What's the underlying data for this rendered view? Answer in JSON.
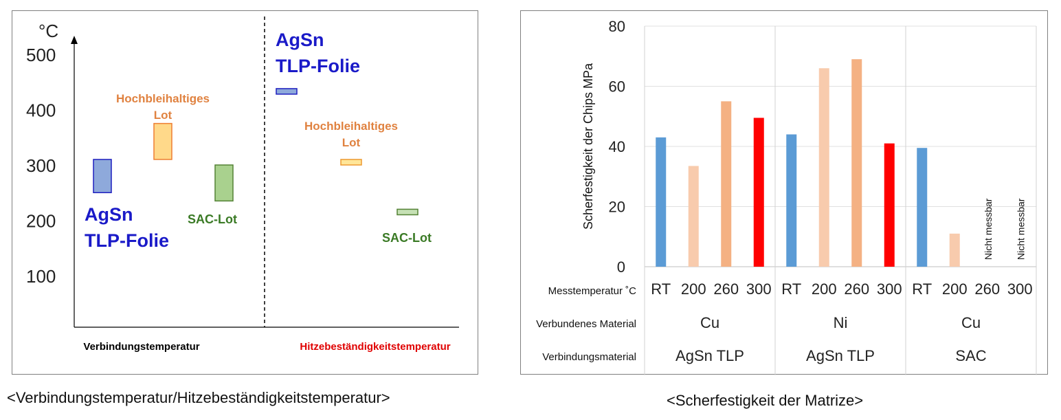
{
  "captions": {
    "left": "<Verbindungstemperatur/Hitzebeständigkeitstemperatur>",
    "right": "<Scherfestigkeit der Matrize>"
  },
  "chart_data": [
    {
      "type": "range",
      "unit": "°C",
      "yticks": [
        100,
        200,
        300,
        400,
        500
      ],
      "ylim": [
        0,
        530
      ],
      "sections": [
        {
          "label": "Verbindungstemperatur",
          "label_color": "#000000",
          "items": [
            {
              "name": "AgSn TLP-Folie",
              "label_lines": [
                "AgSn",
                "TLP-Folie"
              ],
              "range": [
                250,
                310
              ],
              "fill": "#8ea9db",
              "stroke": "#1f1fbf",
              "label_color": "#1a1ac8"
            },
            {
              "name": "Hochbleihaltiges Lot",
              "label_lines": [
                "Hochbleihaltiges",
                "Lot"
              ],
              "range": [
                310,
                375
              ],
              "fill": "#ffd98a",
              "stroke": "#ed7d31",
              "label_color": "#e08240"
            },
            {
              "name": "SAC-Lot",
              "label_lines": [
                "SAC-Lot"
              ],
              "range": [
                235,
                300
              ],
              "fill": "#a9d18e",
              "stroke": "#548235",
              "label_color": "#3a7a25"
            }
          ]
        },
        {
          "label": "Hitzebeständigkeitstemperatur",
          "label_color": "#e00000",
          "items": [
            {
              "name": "AgSn TLP-Folie",
              "label_lines": [
                "AgSn",
                "TLP-Folie"
              ],
              "range": [
                428,
                438
              ],
              "fill": "#8ea9db",
              "stroke": "#1f1fbf",
              "label_color": "#1a1ac8"
            },
            {
              "name": "Hochbleihaltiges Lot",
              "label_lines": [
                "Hochbleihaltiges",
                "Lot"
              ],
              "range": [
                300,
                310
              ],
              "fill": "#ffe699",
              "stroke": "#ed9a31",
              "label_color": "#e08240"
            },
            {
              "name": "SAC-Lot",
              "label_lines": [
                "SAC-Lot"
              ],
              "range": [
                210,
                220
              ],
              "fill": "#c5e0b4",
              "stroke": "#548235",
              "label_color": "#3a7a25"
            }
          ]
        }
      ]
    },
    {
      "type": "bar",
      "ylabel": "Scherfestigkeit der Chips  MPa",
      "ylim": [
        0,
        80
      ],
      "yticks": [
        0,
        20,
        40,
        60,
        80
      ],
      "row_labels": {
        "temperature": "Messtemperatur ˚C",
        "material": "Verbundenes Material",
        "joint": "Verbindungsmaterial"
      },
      "groups": [
        {
          "joint": "AgSn TLP",
          "material": "Cu",
          "bars": [
            {
              "temp": "RT",
              "value": 43,
              "color": "#5b9bd5"
            },
            {
              "temp": "200",
              "value": 33.5,
              "color": "#f8cbad"
            },
            {
              "temp": "260",
              "value": 55,
              "color": "#f4b183"
            },
            {
              "temp": "300",
              "value": 49.5,
              "color": "#ff0000"
            }
          ]
        },
        {
          "joint": "AgSn TLP",
          "material": "Ni",
          "bars": [
            {
              "temp": "RT",
              "value": 44,
              "color": "#5b9bd5"
            },
            {
              "temp": "200",
              "value": 66,
              "color": "#f8cbad"
            },
            {
              "temp": "260",
              "value": 69,
              "color": "#f4b183"
            },
            {
              "temp": "300",
              "value": 41,
              "color": "#ff0000"
            }
          ]
        },
        {
          "joint": "SAC",
          "material": "Cu",
          "bars": [
            {
              "temp": "RT",
              "value": 39.5,
              "color": "#5b9bd5"
            },
            {
              "temp": "200",
              "value": 11,
              "color": "#f8cbad"
            },
            {
              "temp": "260",
              "value": null,
              "color": "#f4b183",
              "note": "Nicht messbar"
            },
            {
              "temp": "300",
              "value": null,
              "color": "#ff0000",
              "note": "Nicht messbar"
            }
          ]
        }
      ]
    }
  ]
}
